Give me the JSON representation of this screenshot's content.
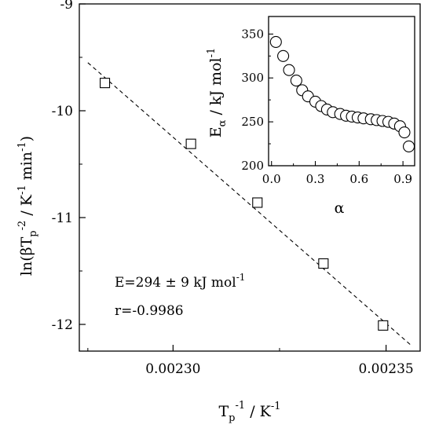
{
  "chart_data": [
    {
      "type": "scatter",
      "ylabel_main": "ln(βT",
      "ylabel_sub": "p",
      "ylabel_sup": "-2",
      "ylabel_rest1": " / K",
      "ylabel_sup2": "-1",
      "ylabel_rest2": " min",
      "ylabel_sup3": "-1",
      "ylabel_close": ")",
      "xlabel_main": "T",
      "xlabel_sub": "p",
      "xlabel_sup": "-1",
      "xlabel_rest": " / K",
      "xlabel_sup2": "-1",
      "xlim": [
        0.002278,
        0.002358
      ],
      "ylim": [
        -12.25,
        -9.0
      ],
      "x_ticks": [
        0.0023,
        0.00235
      ],
      "x_tick_labels": [
        "0.00230",
        "0.00235"
      ],
      "y_ticks": [
        -9,
        -10,
        -11,
        -12
      ],
      "y_tick_labels": [
        "-9",
        "-10",
        "-11",
        "-12"
      ],
      "series": [
        {
          "marker": "open-square",
          "x": [
            0.002284,
            0.0023042,
            0.0023198,
            0.0023353,
            0.0023493
          ],
          "y": [
            -9.74,
            -10.31,
            -10.86,
            -11.43,
            -12.01
          ]
        }
      ],
      "fit_line": {
        "style": "dashed",
        "x": [
          0.00228,
          0.002356
        ],
        "y": [
          -9.55,
          -12.2
        ]
      },
      "annotations": {
        "energy_text": "E=294 ±  9 kJ mol",
        "energy_sup": "-1",
        "r_text": "r=-0.9986"
      }
    },
    {
      "type": "scatter",
      "inset": true,
      "xlabel": "α",
      "ylabel_main": "E",
      "ylabel_sub": "α",
      "ylabel_rest": " / kJ mol",
      "ylabel_sup": "-1",
      "xlim": [
        -0.02,
        0.98
      ],
      "ylim": [
        200,
        370
      ],
      "x_ticks": [
        0.0,
        0.3,
        0.6,
        0.9
      ],
      "x_tick_labels": [
        "0.0",
        "0.3",
        "0.6",
        "0.9"
      ],
      "y_ticks": [
        200,
        250,
        300,
        350
      ],
      "y_tick_labels": [
        "200",
        "250",
        "300",
        "350"
      ],
      "series": [
        {
          "marker": "open-circle",
          "x": [
            0.03,
            0.08,
            0.12,
            0.17,
            0.21,
            0.25,
            0.3,
            0.34,
            0.38,
            0.42,
            0.47,
            0.51,
            0.55,
            0.59,
            0.63,
            0.68,
            0.72,
            0.76,
            0.8,
            0.84,
            0.88,
            0.91,
            0.94
          ],
          "y": [
            341,
            325,
            309,
            297,
            286,
            279,
            273,
            268,
            264,
            261,
            259,
            257,
            256,
            255,
            254,
            253,
            252,
            251,
            250,
            248,
            245,
            238,
            222
          ]
        }
      ]
    }
  ]
}
